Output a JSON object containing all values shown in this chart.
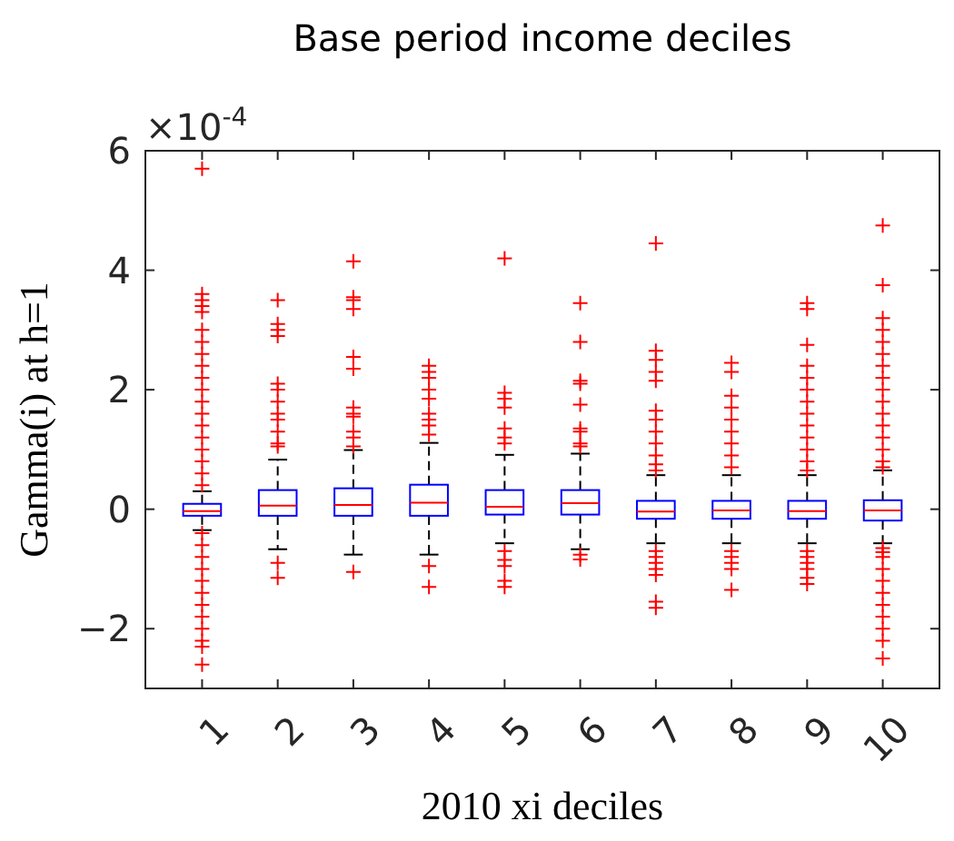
{
  "chart_data": {
    "type": "box",
    "title": "Base period income deciles",
    "xlabel": "2010 xi deciles",
    "ylabel": "Gamma(i) at h=1",
    "annotations": [
      "×10$^{-4}$"
    ],
    "categories": [
      "1",
      "2",
      "3",
      "4",
      "5",
      "6",
      "7",
      "8",
      "9",
      "10"
    ],
    "ylim": [
      -3,
      6
    ],
    "yticks": [
      -2,
      0,
      2,
      4,
      6
    ],
    "color": "#0000ff",
    "marker": "cross",
    "grid": false,
    "boxes": [
      {
        "low": -0.35,
        "q1": -0.11,
        "median": -0.03,
        "q3": 0.09,
        "high": 0.3,
        "outliers": [
          5.7,
          3.6,
          3.5,
          3.4,
          3.3,
          3.0,
          2.8,
          2.6,
          2.4,
          2.2,
          2.0,
          1.8,
          1.6,
          1.4,
          1.2,
          1.0,
          0.8,
          0.6,
          0.4,
          -0.4,
          -0.6,
          -0.8,
          -1.0,
          -1.2,
          -1.4,
          -1.6,
          -1.8,
          -2.0,
          -2.2,
          -2.3,
          -2.6
        ]
      },
      {
        "low": -0.67,
        "q1": -0.11,
        "median": 0.06,
        "q3": 0.32,
        "high": 0.83,
        "outliers": [
          3.5,
          3.1,
          3.0,
          2.9,
          2.1,
          2.0,
          1.8,
          1.6,
          1.5,
          1.3,
          1.1,
          1.05,
          -0.9,
          -1.15
        ]
      },
      {
        "low": -0.76,
        "q1": -0.11,
        "median": 0.07,
        "q3": 0.35,
        "high": 0.99,
        "outliers": [
          4.15,
          3.55,
          3.5,
          3.35,
          2.55,
          2.35,
          1.7,
          1.6,
          1.55,
          1.3,
          1.2,
          1.05,
          -1.05
        ]
      },
      {
        "low": -0.76,
        "q1": -0.11,
        "median": 0.11,
        "q3": 0.41,
        "high": 1.11,
        "outliers": [
          2.4,
          2.3,
          2.2,
          2.0,
          1.85,
          1.6,
          1.5,
          1.4,
          1.25,
          -0.95,
          -1.3
        ]
      },
      {
        "low": -0.57,
        "q1": -0.09,
        "median": 0.04,
        "q3": 0.32,
        "high": 0.91,
        "outliers": [
          4.2,
          1.95,
          1.85,
          1.7,
          1.35,
          1.2,
          1.1,
          -0.7,
          -0.85,
          -0.95,
          -1.2,
          -1.3
        ]
      },
      {
        "low": -0.67,
        "q1": -0.09,
        "median": 0.1,
        "q3": 0.32,
        "high": 0.93,
        "outliers": [
          3.45,
          2.8,
          2.15,
          2.1,
          1.75,
          1.35,
          1.3,
          1.1,
          1.05,
          -0.76,
          -0.84
        ]
      },
      {
        "low": -0.57,
        "q1": -0.16,
        "median": -0.04,
        "q3": 0.14,
        "high": 0.57,
        "outliers": [
          4.45,
          2.65,
          2.5,
          2.3,
          2.15,
          1.65,
          1.5,
          1.3,
          1.1,
          0.9,
          0.75,
          0.65,
          -0.7,
          -0.8,
          -0.9,
          -1.0,
          -1.1,
          -1.55,
          -1.65
        ]
      },
      {
        "low": -0.57,
        "q1": -0.16,
        "median": -0.02,
        "q3": 0.14,
        "high": 0.57,
        "outliers": [
          2.45,
          2.3,
          1.9,
          1.7,
          1.5,
          1.3,
          1.1,
          0.9,
          0.7,
          -0.7,
          -0.8,
          -0.9,
          -1.0,
          -1.35
        ]
      },
      {
        "low": -0.57,
        "q1": -0.16,
        "median": -0.03,
        "q3": 0.14,
        "high": 0.57,
        "outliers": [
          3.45,
          3.35,
          2.75,
          2.4,
          2.2,
          2.0,
          1.8,
          1.6,
          1.4,
          1.2,
          1.0,
          0.8,
          0.65,
          -0.7,
          -0.8,
          -0.9,
          -1.0,
          -1.15,
          -1.25
        ]
      },
      {
        "low": -0.57,
        "q1": -0.19,
        "median": -0.02,
        "q3": 0.15,
        "high": 0.65,
        "outliers": [
          4.75,
          3.75,
          3.2,
          3.0,
          2.8,
          2.6,
          2.4,
          2.2,
          2.0,
          1.8,
          1.6,
          1.4,
          1.2,
          1.0,
          0.8,
          0.7,
          -0.65,
          -0.72,
          -0.8,
          -1.0,
          -1.2,
          -1.4,
          -1.6,
          -1.8,
          -2.0,
          -2.2,
          -2.5
        ]
      }
    ]
  }
}
